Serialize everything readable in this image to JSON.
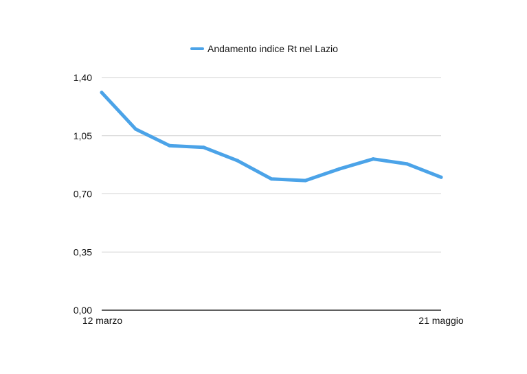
{
  "chart_data": {
    "type": "line",
    "title": "",
    "xlabel": "",
    "ylabel": "",
    "x_tick_labels": [
      "12 marzo",
      "21 maggio"
    ],
    "y_ticks": [
      {
        "value": 0.0,
        "label": "0,00"
      },
      {
        "value": 0.35,
        "label": "0,35"
      },
      {
        "value": 0.7,
        "label": "0,70"
      },
      {
        "value": 1.05,
        "label": "1,05"
      },
      {
        "value": 1.4,
        "label": "1,40"
      }
    ],
    "ylim": [
      0,
      1.4
    ],
    "grid": true,
    "legend": {
      "position": "top-center"
    },
    "series": [
      {
        "name": "Andamento indice Rt nel Lazio",
        "color": "#4ba3e8",
        "values": [
          1.31,
          1.09,
          0.99,
          0.98,
          0.9,
          0.79,
          0.78,
          0.85,
          0.91,
          0.88,
          0.8
        ]
      }
    ]
  }
}
